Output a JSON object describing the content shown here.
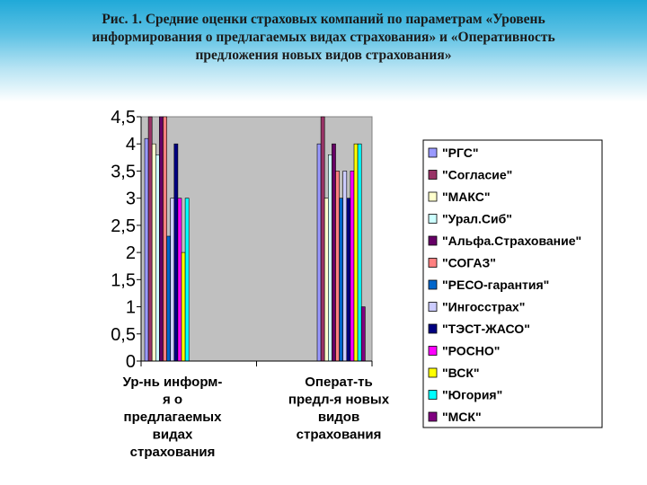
{
  "chart_data": {
    "type": "bar",
    "title": "Рис. 1. Средние оценки страховых компаний по параметрам «Уровень\nинформирования о предлагаемых видах страхования» и «Оперативность\nпредложения новых видов страхования»",
    "categories": [
      "Ур-нь информ-я о предлагаемых видах страхования",
      "Операт-ть предл-я новых видов страхования"
    ],
    "category_lines": [
      [
        "Ур-нь информ-",
        "я о",
        "предлагаемых",
        "видах",
        "страхования"
      ],
      [
        "Операт-ть",
        "предл-я новых",
        "видов",
        "страхования"
      ]
    ],
    "series": [
      {
        "name": "\"РГС\"",
        "color": "#9999ff",
        "values": [
          4.1,
          4.0
        ]
      },
      {
        "name": "\"Согласие\"",
        "color": "#993366",
        "values": [
          4.5,
          4.5
        ]
      },
      {
        "name": "\"МАКС\"",
        "color": "#ffffcc",
        "values": [
          4.0,
          3.0
        ]
      },
      {
        "name": "\"Урал.Сиб\"",
        "color": "#ccffff",
        "values": [
          3.8,
          3.8
        ]
      },
      {
        "name": "\"Альфа.Страхование\"",
        "color": "#660066",
        "values": [
          4.5,
          4.0
        ]
      },
      {
        "name": "\"СОГАЗ\"",
        "color": "#ff8080",
        "values": [
          4.5,
          3.5
        ]
      },
      {
        "name": "\"РЕСО-гарантия\"",
        "color": "#0066cc",
        "values": [
          2.3,
          3.0
        ]
      },
      {
        "name": "\"Ингосстрах\"",
        "color": "#ccccff",
        "values": [
          3.0,
          3.5
        ]
      },
      {
        "name": "\"ТЭСТ-ЖАСО\"",
        "color": "#000080",
        "values": [
          4.0,
          3.0
        ]
      },
      {
        "name": "\"РОСНО\"",
        "color": "#ff00ff",
        "values": [
          3.0,
          3.5
        ]
      },
      {
        "name": "\"ВСК\"",
        "color": "#ffff00",
        "values": [
          2.0,
          4.0
        ]
      },
      {
        "name": "\"Югория\"",
        "color": "#00ffff",
        "values": [
          3.0,
          4.0
        ]
      },
      {
        "name": "\"МСК\"",
        "color": "#800080",
        "values": [
          0,
          1.0
        ]
      }
    ],
    "y_ticks": [
      "0",
      "0,5",
      "1",
      "1,5",
      "2",
      "2,5",
      "3",
      "3,5",
      "4",
      "4,5"
    ],
    "ylim": [
      0,
      4.5
    ],
    "grid": false,
    "legend_position": "right",
    "plot_background": "#c0c0c0"
  }
}
